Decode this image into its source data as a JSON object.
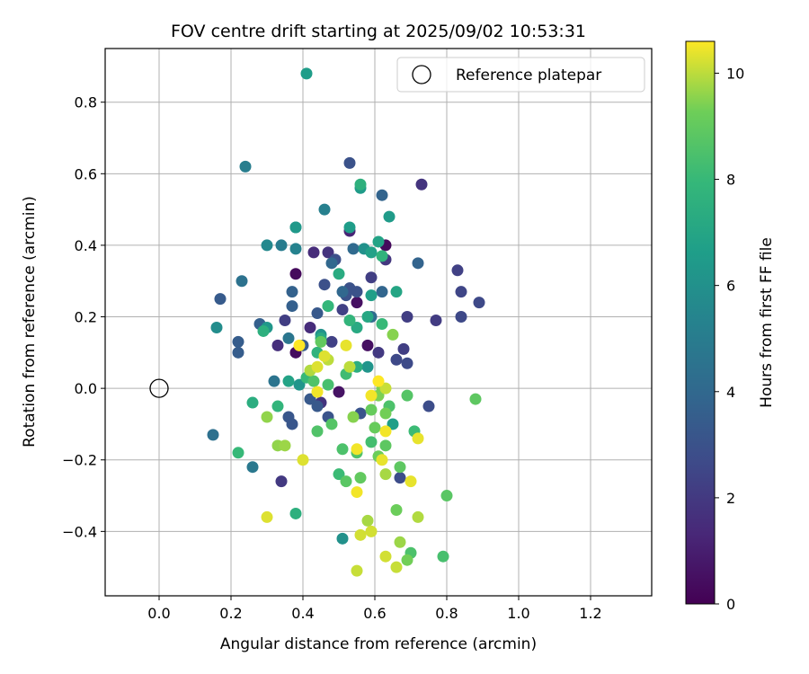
{
  "chart_data": {
    "type": "scatter",
    "title": "FOV centre drift starting at 2025/09/02 10:53:31",
    "xlabel": "Angular distance from reference (arcmin)",
    "ylabel": "Rotation from reference (arcmin)",
    "xlim": [
      -0.15,
      1.37
    ],
    "ylim": [
      -0.58,
      0.95
    ],
    "xticks": [
      "0.0",
      "0.2",
      "0.4",
      "0.6",
      "0.8",
      "1.0",
      "1.2"
    ],
    "xtick_values": [
      0,
      0.2,
      0.4,
      0.6,
      0.8,
      1.0,
      1.2
    ],
    "yticks": [
      "−0.4",
      "−0.2",
      "0.0",
      "0.2",
      "0.4",
      "0.6",
      "0.8"
    ],
    "ytick_values": [
      -0.4,
      -0.2,
      0,
      0.2,
      0.4,
      0.6,
      0.8
    ],
    "grid": true,
    "legend": {
      "position": "top-right",
      "label": "Reference platepar"
    },
    "reference_point": {
      "x": 0.0,
      "y": 0.0
    },
    "colorbar": {
      "label": "Hours from first FF file",
      "colormap": "viridis",
      "range": [
        0,
        10.6
      ],
      "ticks": [
        "0",
        "2",
        "4",
        "6",
        "8",
        "10"
      ],
      "tick_values": [
        0,
        2,
        4,
        6,
        8,
        10
      ]
    },
    "points": [
      {
        "x": 0.38,
        "y": 0.32,
        "h": 0.3
      },
      {
        "x": 0.63,
        "y": 0.4,
        "h": 0.3
      },
      {
        "x": 0.38,
        "y": 0.1,
        "h": 0.4
      },
      {
        "x": 0.55,
        "y": 0.24,
        "h": 0.5
      },
      {
        "x": 0.58,
        "y": 0.12,
        "h": 0.5
      },
      {
        "x": 0.5,
        "y": -0.01,
        "h": 0.6
      },
      {
        "x": 0.53,
        "y": 0.44,
        "h": 1.2
      },
      {
        "x": 0.43,
        "y": 0.38,
        "h": 1.5
      },
      {
        "x": 0.42,
        "y": 0.17,
        "h": 1.5
      },
      {
        "x": 0.33,
        "y": 0.12,
        "h": 1.6
      },
      {
        "x": 0.73,
        "y": 0.57,
        "h": 1.8
      },
      {
        "x": 0.45,
        "y": -0.04,
        "h": 1.8
      },
      {
        "x": 0.47,
        "y": 0.38,
        "h": 1.8
      },
      {
        "x": 0.63,
        "y": 0.36,
        "h": 1.9
      },
      {
        "x": 0.34,
        "y": -0.26,
        "h": 2.0
      },
      {
        "x": 0.61,
        "y": 0.1,
        "h": 2.0
      },
      {
        "x": 0.77,
        "y": 0.19,
        "h": 2.1
      },
      {
        "x": 0.69,
        "y": 0.2,
        "h": 2.2
      },
      {
        "x": 0.68,
        "y": 0.11,
        "h": 2.2
      },
      {
        "x": 0.59,
        "y": 0.31,
        "h": 2.2
      },
      {
        "x": 0.35,
        "y": 0.19,
        "h": 2.2
      },
      {
        "x": 0.48,
        "y": 0.13,
        "h": 2.3
      },
      {
        "x": 0.51,
        "y": 0.22,
        "h": 2.3
      },
      {
        "x": 0.83,
        "y": 0.33,
        "h": 2.3
      },
      {
        "x": 0.84,
        "y": 0.27,
        "h": 2.5
      },
      {
        "x": 0.84,
        "y": 0.2,
        "h": 2.6
      },
      {
        "x": 0.89,
        "y": 0.24,
        "h": 2.6
      },
      {
        "x": 0.66,
        "y": 0.08,
        "h": 2.6
      },
      {
        "x": 0.69,
        "y": 0.07,
        "h": 2.7
      },
      {
        "x": 0.67,
        "y": -0.25,
        "h": 2.8
      },
      {
        "x": 0.75,
        "y": -0.05,
        "h": 2.8
      },
      {
        "x": 0.46,
        "y": 0.29,
        "h": 2.9
      },
      {
        "x": 0.49,
        "y": 0.36,
        "h": 2.9
      },
      {
        "x": 0.53,
        "y": 0.63,
        "h": 3.0
      },
      {
        "x": 0.52,
        "y": 0.26,
        "h": 3.0
      },
      {
        "x": 0.53,
        "y": 0.28,
        "h": 3.0
      },
      {
        "x": 0.55,
        "y": 0.27,
        "h": 3.0
      },
      {
        "x": 0.56,
        "y": -0.07,
        "h": 3.1
      },
      {
        "x": 0.47,
        "y": -0.08,
        "h": 3.1
      },
      {
        "x": 0.36,
        "y": -0.08,
        "h": 3.2
      },
      {
        "x": 0.37,
        "y": -0.1,
        "h": 3.2
      },
      {
        "x": 0.44,
        "y": -0.05,
        "h": 3.3
      },
      {
        "x": 0.42,
        "y": -0.03,
        "h": 3.3
      },
      {
        "x": 0.44,
        "y": 0.21,
        "h": 3.3
      },
      {
        "x": 0.4,
        "y": 0.12,
        "h": 3.4
      },
      {
        "x": 0.17,
        "y": 0.25,
        "h": 3.4
      },
      {
        "x": 0.22,
        "y": 0.13,
        "h": 3.5
      },
      {
        "x": 0.22,
        "y": 0.1,
        "h": 3.5
      },
      {
        "x": 0.28,
        "y": 0.18,
        "h": 3.6
      },
      {
        "x": 0.37,
        "y": 0.23,
        "h": 3.6
      },
      {
        "x": 0.37,
        "y": 0.27,
        "h": 3.7
      },
      {
        "x": 0.72,
        "y": 0.35,
        "h": 3.8
      },
      {
        "x": 0.62,
        "y": 0.54,
        "h": 3.8
      },
      {
        "x": 0.62,
        "y": 0.27,
        "h": 3.9
      },
      {
        "x": 0.48,
        "y": 0.35,
        "h": 4.0
      },
      {
        "x": 0.51,
        "y": 0.27,
        "h": 4.0
      },
      {
        "x": 0.54,
        "y": 0.39,
        "h": 4.1
      },
      {
        "x": 0.59,
        "y": 0.2,
        "h": 4.2
      },
      {
        "x": 0.15,
        "y": -0.13,
        "h": 4.4
      },
      {
        "x": 0.23,
        "y": 0.3,
        "h": 4.5
      },
      {
        "x": 0.32,
        "y": 0.02,
        "h": 4.6
      },
      {
        "x": 0.36,
        "y": 0.14,
        "h": 4.7
      },
      {
        "x": 0.26,
        "y": -0.22,
        "h": 4.8
      },
      {
        "x": 0.34,
        "y": 0.4,
        "h": 5.0
      },
      {
        "x": 0.24,
        "y": 0.62,
        "h": 5.1
      },
      {
        "x": 0.46,
        "y": 0.5,
        "h": 5.2
      },
      {
        "x": 0.38,
        "y": 0.39,
        "h": 5.3
      },
      {
        "x": 0.38,
        "y": 0.45,
        "h": 5.4
      },
      {
        "x": 0.3,
        "y": 0.4,
        "h": 5.6
      },
      {
        "x": 0.16,
        "y": 0.17,
        "h": 5.8
      },
      {
        "x": 0.51,
        "y": -0.42,
        "h": 6.0
      },
      {
        "x": 0.57,
        "y": 0.39,
        "h": 6.0
      },
      {
        "x": 0.45,
        "y": 0.15,
        "h": 6.1
      },
      {
        "x": 0.58,
        "y": 0.06,
        "h": 6.2
      },
      {
        "x": 0.39,
        "y": 0.01,
        "h": 6.2
      },
      {
        "x": 0.3,
        "y": 0.17,
        "h": 6.3
      },
      {
        "x": 0.38,
        "y": 0.45,
        "h": 6.4
      },
      {
        "x": 0.56,
        "y": 0.56,
        "h": 6.5
      },
      {
        "x": 0.64,
        "y": 0.48,
        "h": 6.5
      },
      {
        "x": 0.53,
        "y": 0.45,
        "h": 6.6
      },
      {
        "x": 0.41,
        "y": 0.88,
        "h": 6.6
      },
      {
        "x": 0.65,
        "y": -0.1,
        "h": 6.7
      },
      {
        "x": 0.59,
        "y": 0.26,
        "h": 6.7
      },
      {
        "x": 0.59,
        "y": 0.38,
        "h": 6.8
      },
      {
        "x": 0.36,
        "y": 0.02,
        "h": 6.9
      },
      {
        "x": 0.61,
        "y": 0.41,
        "h": 6.9
      },
      {
        "x": 0.66,
        "y": 0.27,
        "h": 7.0
      },
      {
        "x": 0.47,
        "y": 0.23,
        "h": 7.1
      },
      {
        "x": 0.58,
        "y": 0.2,
        "h": 7.1
      },
      {
        "x": 0.55,
        "y": 0.17,
        "h": 7.2
      },
      {
        "x": 0.45,
        "y": 0.14,
        "h": 7.2
      },
      {
        "x": 0.5,
        "y": 0.32,
        "h": 7.3
      },
      {
        "x": 0.26,
        "y": -0.04,
        "h": 7.4
      },
      {
        "x": 0.55,
        "y": 0.06,
        "h": 7.4
      },
      {
        "x": 0.29,
        "y": 0.16,
        "h": 7.5
      },
      {
        "x": 0.38,
        "y": -0.35,
        "h": 7.5
      },
      {
        "x": 0.56,
        "y": 0.57,
        "h": 7.6
      },
      {
        "x": 0.62,
        "y": 0.37,
        "h": 7.7
      },
      {
        "x": 0.44,
        "y": 0.1,
        "h": 7.7
      },
      {
        "x": 0.33,
        "y": -0.05,
        "h": 7.8
      },
      {
        "x": 0.53,
        "y": 0.19,
        "h": 7.8
      },
      {
        "x": 0.47,
        "y": 0.23,
        "h": 7.9
      },
      {
        "x": 0.41,
        "y": 0.03,
        "h": 8.0
      },
      {
        "x": 0.62,
        "y": 0.18,
        "h": 8.0
      },
      {
        "x": 0.22,
        "y": -0.18,
        "h": 8.0
      },
      {
        "x": 0.71,
        "y": -0.12,
        "h": 8.1
      },
      {
        "x": 0.5,
        "y": -0.24,
        "h": 8.1
      },
      {
        "x": 0.64,
        "y": -0.05,
        "h": 8.2
      },
      {
        "x": 0.52,
        "y": 0.04,
        "h": 8.2
      },
      {
        "x": 0.59,
        "y": -0.15,
        "h": 8.3
      },
      {
        "x": 0.47,
        "y": 0.01,
        "h": 8.4
      },
      {
        "x": 0.79,
        "y": -0.47,
        "h": 8.4
      },
      {
        "x": 0.7,
        "y": -0.46,
        "h": 8.5
      },
      {
        "x": 0.51,
        "y": -0.17,
        "h": 8.5
      },
      {
        "x": 0.64,
        "y": -0.05,
        "h": 8.5
      },
      {
        "x": 0.43,
        "y": 0.02,
        "h": 8.6
      },
      {
        "x": 0.55,
        "y": -0.18,
        "h": 8.6
      },
      {
        "x": 0.44,
        "y": -0.12,
        "h": 8.6
      },
      {
        "x": 0.48,
        "y": -0.1,
        "h": 8.7
      },
      {
        "x": 0.69,
        "y": -0.02,
        "h": 8.7
      },
      {
        "x": 0.52,
        "y": -0.26,
        "h": 8.8
      },
      {
        "x": 0.8,
        "y": -0.3,
        "h": 8.8
      },
      {
        "x": 0.88,
        "y": -0.03,
        "h": 8.9
      },
      {
        "x": 0.63,
        "y": -0.16,
        "h": 8.9
      },
      {
        "x": 0.67,
        "y": -0.22,
        "h": 8.9
      },
      {
        "x": 0.56,
        "y": -0.25,
        "h": 9.0
      },
      {
        "x": 0.45,
        "y": 0.13,
        "h": 9.0
      },
      {
        "x": 0.59,
        "y": -0.06,
        "h": 9.1
      },
      {
        "x": 0.6,
        "y": -0.11,
        "h": 9.1
      },
      {
        "x": 0.61,
        "y": -0.19,
        "h": 9.2
      },
      {
        "x": 0.66,
        "y": -0.34,
        "h": 9.2
      },
      {
        "x": 0.69,
        "y": -0.48,
        "h": 9.3
      },
      {
        "x": 0.63,
        "y": -0.07,
        "h": 9.3
      },
      {
        "x": 0.62,
        "y": 0.0,
        "h": 9.4
      },
      {
        "x": 0.61,
        "y": -0.02,
        "h": 9.4
      },
      {
        "x": 0.65,
        "y": 0.15,
        "h": 9.5
      },
      {
        "x": 0.54,
        "y": -0.08,
        "h": 9.5
      },
      {
        "x": 0.3,
        "y": -0.08,
        "h": 9.6
      },
      {
        "x": 0.33,
        "y": -0.16,
        "h": 9.6
      },
      {
        "x": 0.35,
        "y": -0.16,
        "h": 9.7
      },
      {
        "x": 0.67,
        "y": -0.43,
        "h": 9.7
      },
      {
        "x": 0.63,
        "y": -0.24,
        "h": 9.8
      },
      {
        "x": 0.58,
        "y": -0.37,
        "h": 9.8
      },
      {
        "x": 0.72,
        "y": -0.36,
        "h": 9.9
      },
      {
        "x": 0.42,
        "y": 0.05,
        "h": 9.9
      },
      {
        "x": 0.47,
        "y": 0.08,
        "h": 10.0
      },
      {
        "x": 0.53,
        "y": 0.06,
        "h": 10.0
      },
      {
        "x": 0.63,
        "y": 0.0,
        "h": 10.1
      },
      {
        "x": 0.66,
        "y": -0.5,
        "h": 10.1
      },
      {
        "x": 0.55,
        "y": -0.51,
        "h": 10.1
      },
      {
        "x": 0.63,
        "y": -0.47,
        "h": 10.2
      },
      {
        "x": 0.56,
        "y": -0.41,
        "h": 10.2
      },
      {
        "x": 0.59,
        "y": -0.4,
        "h": 10.2
      },
      {
        "x": 0.44,
        "y": 0.06,
        "h": 10.3
      },
      {
        "x": 0.46,
        "y": 0.09,
        "h": 10.3
      },
      {
        "x": 0.3,
        "y": -0.36,
        "h": 10.3
      },
      {
        "x": 0.4,
        "y": -0.2,
        "h": 10.3
      },
      {
        "x": 0.72,
        "y": -0.14,
        "h": 10.4
      },
      {
        "x": 0.62,
        "y": -0.2,
        "h": 10.4
      },
      {
        "x": 0.7,
        "y": -0.26,
        "h": 10.4
      },
      {
        "x": 0.52,
        "y": 0.12,
        "h": 10.4
      },
      {
        "x": 0.55,
        "y": -0.17,
        "h": 10.5
      },
      {
        "x": 0.55,
        "y": -0.29,
        "h": 10.5
      },
      {
        "x": 0.44,
        "y": -0.01,
        "h": 10.5
      },
      {
        "x": 0.59,
        "y": -0.02,
        "h": 10.5
      },
      {
        "x": 0.63,
        "y": -0.12,
        "h": 10.5
      },
      {
        "x": 0.61,
        "y": 0.02,
        "h": 10.6
      },
      {
        "x": 0.39,
        "y": 0.12,
        "h": 10.6
      }
    ]
  }
}
